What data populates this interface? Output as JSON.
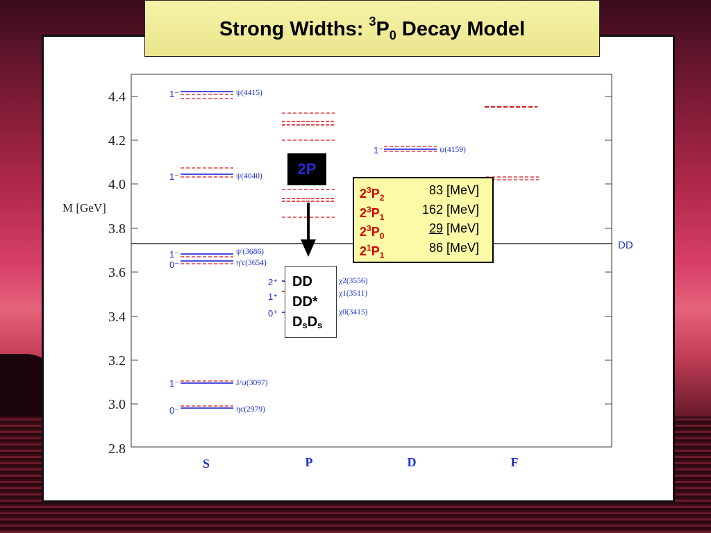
{
  "slide": {
    "title_prefix": "Strong Widths: ",
    "title_sup": "3",
    "title_p": "P",
    "title_sub": "0",
    "title_suffix": " Decay Model"
  },
  "diagram": {
    "ylabel": "M [GeV]",
    "y_ticks": [
      "4.4",
      "4.2",
      "4.0",
      "3.8",
      "3.6",
      "3.4",
      "3.2",
      "3.0",
      "2.8"
    ],
    "x_labels": [
      "S",
      "P",
      "D",
      "F"
    ],
    "threshold_label": "DD",
    "box_2p": "2P",
    "states": [
      {
        "jp": "1⁻",
        "name": "ψ(4415)"
      },
      {
        "jp": "1⁻",
        "name": "ψ(4040)"
      },
      {
        "jp": "1⁻",
        "name": "ψ'(3686)"
      },
      {
        "jp": "0⁻",
        "name": "η'c(3654)"
      },
      {
        "jp": "1⁻",
        "name": "J/ψ(3097)"
      },
      {
        "jp": "0⁻",
        "name": "ηc(2979)"
      },
      {
        "jp": "2⁺",
        "name": "χ2(3556)"
      },
      {
        "jp": "1⁺",
        "name": "χ1(3511)"
      },
      {
        "jp": "0⁺",
        "name": "χ0(3415)"
      },
      {
        "jp": "1⁻",
        "name": "ψ(4159)"
      }
    ],
    "widths_table": [
      {
        "n": "2",
        "s": "3",
        "l": "P",
        "j": "2",
        "value": "83",
        "unit": "[MeV]"
      },
      {
        "n": "2",
        "s": "3",
        "l": "P",
        "j": "1",
        "value": "162",
        "unit": "[MeV]"
      },
      {
        "n": "2",
        "s": "3",
        "l": "P",
        "j": "0",
        "value": "29",
        "unit": "[MeV]"
      },
      {
        "n": "2",
        "s": "1",
        "l": "P",
        "j": "1",
        "value": "86",
        "unit": "[MeV]"
      }
    ],
    "decay_channels": {
      "a": "DD",
      "b": "DD*",
      "c1": "D",
      "c1sub": "s",
      "c2": "D",
      "c2sub": "s"
    },
    "colors": {
      "experiment": "#1010d0",
      "theory": "#e01010",
      "label_blue": "#1a2fd0"
    }
  }
}
